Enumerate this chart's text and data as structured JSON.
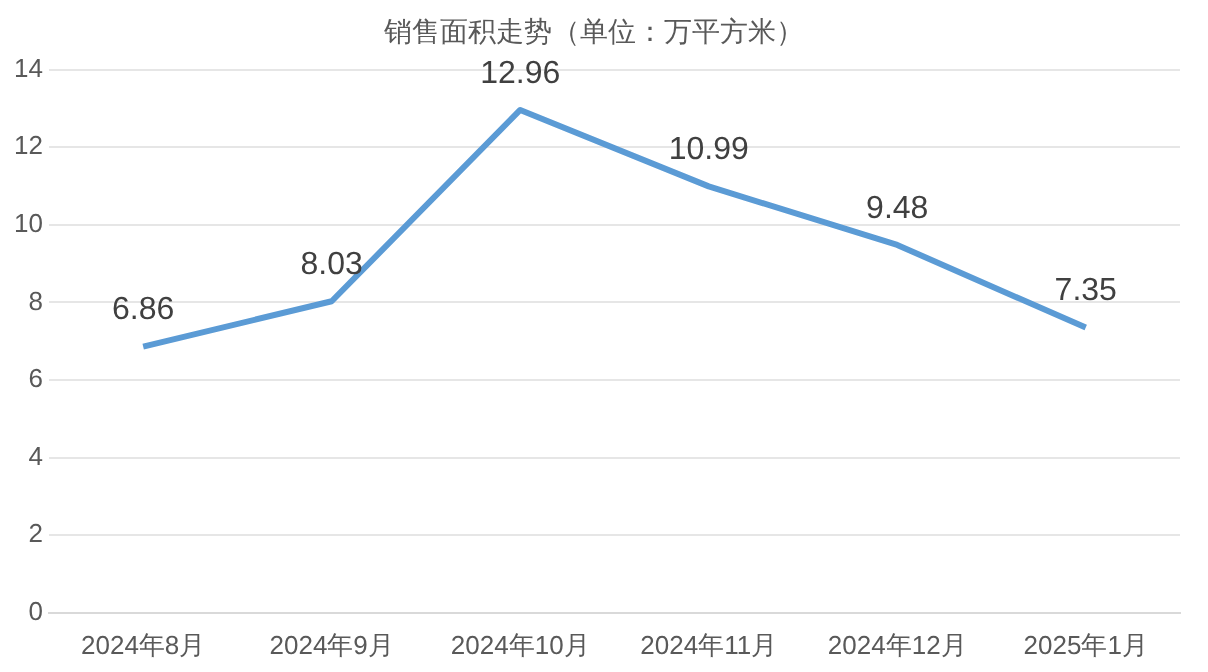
{
  "chart_data": {
    "type": "line",
    "title": "销售面积走势（单位：万平方米）",
    "categories": [
      "2024年8月",
      "2024年9月",
      "2024年10月",
      "2024年11月",
      "2024年12月",
      "2025年1月"
    ],
    "series": [
      {
        "color": "#5b9bd5",
        "values": [
          6.86,
          8.03,
          12.96,
          10.99,
          9.48,
          7.35
        ]
      }
    ],
    "ylim": [
      0,
      14
    ],
    "yticks": [
      0,
      2,
      4,
      6,
      8,
      10,
      12,
      14
    ],
    "grid": "y",
    "legend": false,
    "marker": "none",
    "line_style": "solid",
    "data_labels": true
  }
}
